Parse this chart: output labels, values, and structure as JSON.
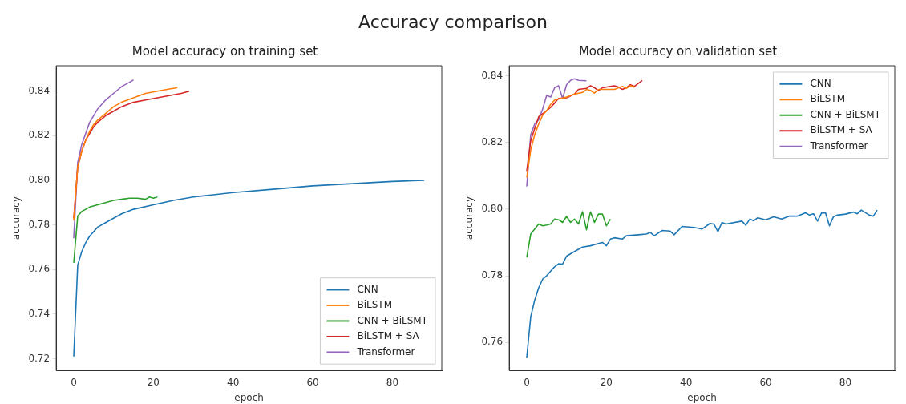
{
  "chart_data": [
    {
      "type": "line",
      "title": "Model accuracy on training set",
      "annotations": [
        "Accuracy comparison"
      ],
      "xlabel": "epoch",
      "ylabel": "accuracy",
      "xlim": [
        -4.4,
        92.4
      ],
      "ylim": [
        0.7147,
        0.8514
      ],
      "xticks": [
        0,
        20,
        40,
        60,
        80
      ],
      "yticks": [
        0.72,
        0.74,
        0.76,
        0.78,
        {
          "value": 0.8,
          "label": "0.80"
        },
        0.82,
        0.84
      ],
      "grid": false,
      "legend": "bottom right",
      "marker": "none",
      "line_style": "solid",
      "series": [
        {
          "name": "CNN",
          "color": "#1f77b4",
          "x": [
            0,
            1,
            2,
            3,
            4,
            5,
            6,
            8,
            10,
            12,
            15,
            20,
            25,
            30,
            35,
            40,
            50,
            60,
            70,
            80,
            88
          ],
          "values": [
            0.721,
            0.762,
            0.768,
            0.772,
            0.775,
            0.777,
            0.779,
            0.781,
            0.783,
            0.785,
            0.787,
            0.789,
            0.791,
            0.7925,
            0.7935,
            0.7945,
            0.796,
            0.7975,
            0.7985,
            0.7995,
            0.8
          ]
        },
        {
          "name": "BiLSTM",
          "color": "#ff7f0e",
          "x": [
            0,
            1,
            2,
            3,
            4,
            5,
            6,
            8,
            10,
            12,
            15,
            18,
            21,
            24,
            26
          ],
          "values": [
            0.782,
            0.806,
            0.813,
            0.818,
            0.822,
            0.825,
            0.827,
            0.83,
            0.833,
            0.835,
            0.837,
            0.839,
            0.84,
            0.841,
            0.8415
          ]
        },
        {
          "name": "CNN + BiLSMT",
          "color": "#2ca02c",
          "x": [
            0,
            1,
            2,
            3,
            4,
            6,
            8,
            10,
            12,
            14,
            16,
            18,
            19,
            20,
            21
          ],
          "values": [
            0.763,
            0.784,
            0.786,
            0.787,
            0.788,
            0.789,
            0.79,
            0.791,
            0.7915,
            0.792,
            0.792,
            0.7915,
            0.7925,
            0.792,
            0.7925
          ]
        },
        {
          "name": "BiLSTM + SA",
          "color": "#d62728",
          "x": [
            0,
            1,
            2,
            3,
            4,
            5,
            6,
            8,
            10,
            12,
            15,
            18,
            21,
            24,
            27,
            29
          ],
          "values": [
            0.783,
            0.806,
            0.813,
            0.818,
            0.821,
            0.824,
            0.826,
            0.829,
            0.831,
            0.833,
            0.835,
            0.836,
            0.837,
            0.838,
            0.839,
            0.84
          ]
        },
        {
          "name": "Transformer",
          "color": "#9467bd",
          "x": [
            0,
            1,
            2,
            3,
            4,
            5,
            6,
            8,
            10,
            12,
            14,
            15
          ],
          "values": [
            0.774,
            0.808,
            0.816,
            0.821,
            0.826,
            0.829,
            0.832,
            0.836,
            0.839,
            0.842,
            0.844,
            0.845
          ]
        }
      ]
    },
    {
      "type": "line",
      "title": "Model accuracy on validation set",
      "xlabel": "epoch",
      "ylabel": "accuracy",
      "xlim": [
        -4.4,
        92.4
      ],
      "ylim": [
        0.7516,
        0.843
      ],
      "xticks": [
        0,
        20,
        40,
        60,
        80
      ],
      "yticks": [
        0.76,
        0.78,
        {
          "value": 0.8,
          "label": "0.80"
        },
        0.82,
        0.84
      ],
      "grid": false,
      "legend": "top right",
      "marker": "none",
      "line_style": "solid",
      "series": [
        {
          "name": "CNN",
          "color": "#1f77b4",
          "x": [
            0,
            1,
            2,
            3,
            4,
            5,
            6,
            7,
            8,
            9,
            10,
            12,
            14,
            16,
            18,
            19,
            20,
            21,
            22,
            24,
            25,
            28,
            30,
            31,
            32,
            34,
            36,
            37,
            39,
            42,
            44,
            46,
            47,
            48,
            49,
            50,
            54,
            55,
            56,
            57,
            58,
            60,
            62,
            64,
            66,
            68,
            70,
            71,
            72,
            73,
            74,
            75,
            76,
            77,
            78,
            80,
            82,
            83,
            84,
            86,
            87,
            88
          ],
          "values": [
            0.7555,
            0.7677,
            0.7727,
            0.7764,
            0.779,
            0.78,
            0.7814,
            0.7827,
            0.7836,
            0.7835,
            0.7859,
            0.7873,
            0.7886,
            0.789,
            0.7897,
            0.79,
            0.789,
            0.791,
            0.7914,
            0.791,
            0.792,
            0.7923,
            0.7925,
            0.793,
            0.792,
            0.7936,
            0.7934,
            0.7923,
            0.7948,
            0.7945,
            0.794,
            0.7957,
            0.7955,
            0.7932,
            0.796,
            0.7955,
            0.7964,
            0.7952,
            0.797,
            0.7965,
            0.7974,
            0.7968,
            0.7977,
            0.797,
            0.7979,
            0.7979,
            0.7989,
            0.7982,
            0.7986,
            0.7964,
            0.7988,
            0.7989,
            0.795,
            0.7977,
            0.7982,
            0.7985,
            0.7991,
            0.7986,
            0.7997,
            0.7982,
            0.7979,
            0.7997
          ]
        },
        {
          "name": "BiLSTM",
          "color": "#ff7f0e",
          "x": [
            0,
            1,
            2,
            3,
            4,
            5,
            6,
            7,
            8,
            10,
            12,
            14,
            15,
            16,
            17,
            18,
            20,
            22,
            24,
            25,
            26,
            27
          ],
          "values": [
            0.8095,
            0.8177,
            0.8223,
            0.8255,
            0.8282,
            0.8295,
            0.8314,
            0.8327,
            0.833,
            0.8336,
            0.8345,
            0.835,
            0.8359,
            0.8356,
            0.8348,
            0.8359,
            0.8359,
            0.8359,
            0.8368,
            0.8362,
            0.837,
            0.8366
          ]
        },
        {
          "name": "CNN + BiLSMT",
          "color": "#2ca02c",
          "x": [
            0,
            1,
            2,
            3,
            4,
            5,
            6,
            7,
            8,
            9,
            10,
            11,
            12,
            13,
            14,
            15,
            16,
            17,
            18,
            19,
            20,
            21
          ],
          "values": [
            0.7855,
            0.7925,
            0.794,
            0.7955,
            0.795,
            0.7952,
            0.7955,
            0.797,
            0.7968,
            0.796,
            0.7978,
            0.796,
            0.797,
            0.7955,
            0.7992,
            0.7938,
            0.7992,
            0.796,
            0.7985,
            0.7985,
            0.795,
            0.797
          ]
        },
        {
          "name": "BiLSTM + SA",
          "color": "#d62728",
          "x": [
            0,
            1,
            2,
            3,
            4,
            5,
            6,
            7,
            8,
            10,
            12,
            13,
            15,
            16,
            17,
            18,
            19,
            21,
            22,
            23,
            24,
            25,
            26,
            27,
            28,
            29
          ],
          "values": [
            0.8114,
            0.8205,
            0.8241,
            0.8277,
            0.8286,
            0.8295,
            0.8305,
            0.8318,
            0.8332,
            0.8334,
            0.8345,
            0.8359,
            0.8362,
            0.837,
            0.8364,
            0.8355,
            0.8364,
            0.8368,
            0.837,
            0.8366,
            0.8359,
            0.8364,
            0.8373,
            0.8368,
            0.8377,
            0.8386
          ]
        },
        {
          "name": "Transformer",
          "color": "#9467bd",
          "x": [
            0,
            1,
            2,
            3,
            4,
            5,
            6,
            7,
            8,
            9,
            10,
            11,
            12,
            13,
            15
          ],
          "values": [
            0.8068,
            0.8223,
            0.8255,
            0.8268,
            0.83,
            0.8341,
            0.8336,
            0.8364,
            0.837,
            0.8332,
            0.8373,
            0.8386,
            0.8391,
            0.8386,
            0.8385
          ]
        }
      ]
    }
  ]
}
